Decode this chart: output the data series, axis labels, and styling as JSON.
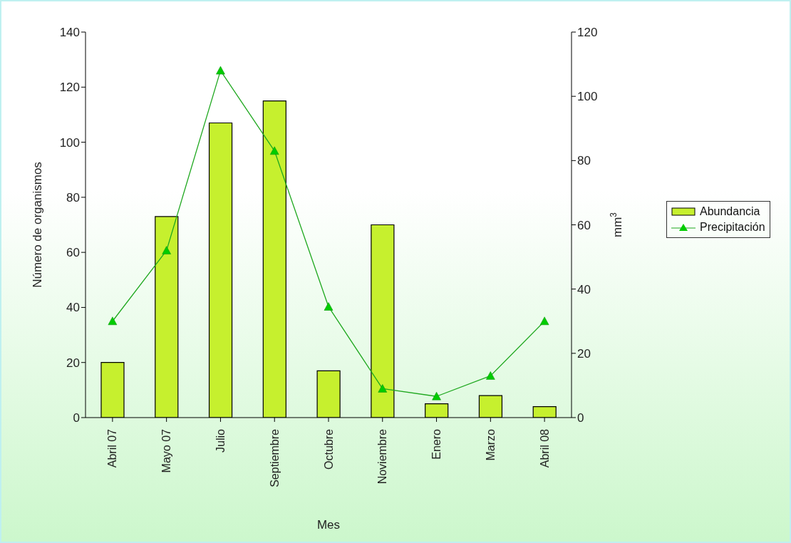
{
  "chart_data": {
    "type": "bar",
    "xlabel": "Mes",
    "ylabel": "Número de organismos",
    "y2label": "mm$^{3}$",
    "categories": [
      "Abril 07",
      "Mayo 07",
      "Julio",
      "Septiembre",
      "Octubre",
      "Noviembre",
      "Enero",
      "Marzo",
      "Abril 08"
    ],
    "series": [
      {
        "name": "Abundancia",
        "color": "#c6f02e",
        "values": [
          20,
          73,
          107,
          115,
          17,
          70,
          5,
          8,
          4
        ]
      },
      {
        "name": "Precipitación",
        "type": "line",
        "axis": "y2",
        "color": "#1fa81f",
        "marker": "triangle",
        "values": [
          30,
          52,
          108,
          83,
          34.5,
          9,
          6.6,
          13,
          30
        ]
      }
    ],
    "ylim": [
      0,
      140
    ],
    "yticks": [
      0,
      20,
      40,
      60,
      80,
      100,
      120,
      140
    ],
    "y2lim": [
      0,
      120
    ],
    "y2ticks": [
      0,
      20,
      40,
      60,
      80,
      100,
      120
    ],
    "legend": "right"
  }
}
